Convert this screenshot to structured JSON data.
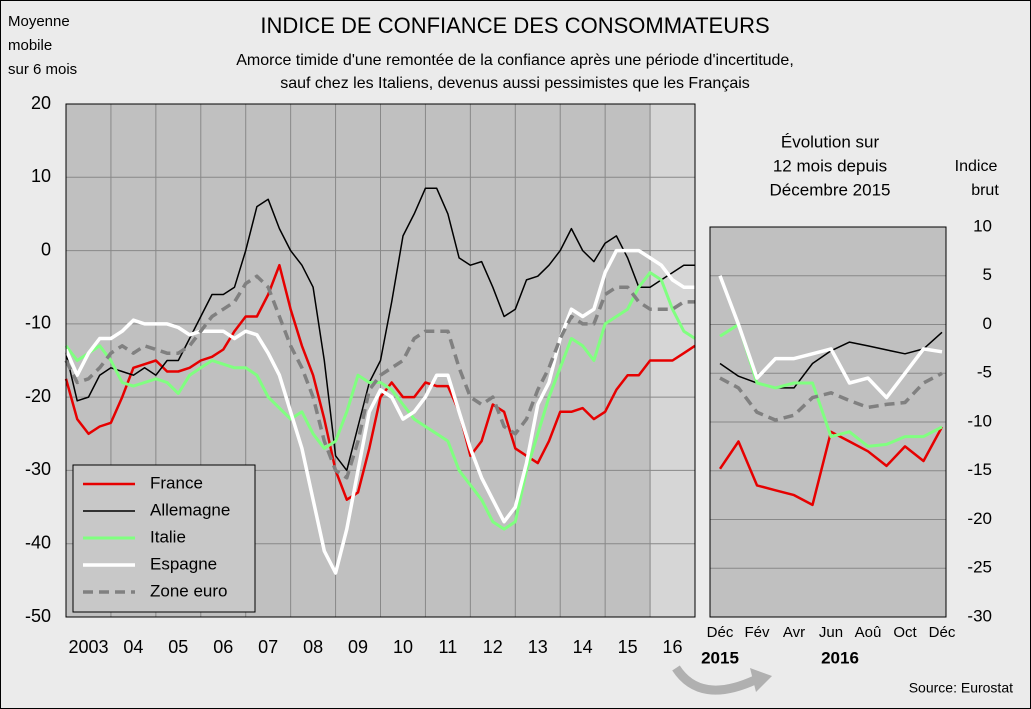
{
  "chart_data": [
    {
      "type": "line",
      "title": "INDICE DE CONFIANCE DES CONSOMMATEURS",
      "subtitle_lines": [
        "Amorce timide d'une remontée de la confiance après une période d'incertitude,",
        "sauf chez les Italiens, devenus aussi pessimistes que les Français"
      ],
      "y_label_lines": [
        "Moyenne",
        "mobile",
        "sur 6 mois"
      ],
      "x": [
        2003,
        2003.25,
        2003.5,
        2003.75,
        2004,
        2004.25,
        2004.5,
        2004.75,
        2005,
        2005.25,
        2005.5,
        2005.75,
        2006,
        2006.25,
        2006.5,
        2006.75,
        2007,
        2007.25,
        2007.5,
        2007.75,
        2008,
        2008.25,
        2008.5,
        2008.75,
        2009,
        2009.25,
        2009.5,
        2009.75,
        2010,
        2010.25,
        2010.5,
        2010.75,
        2011,
        2011.25,
        2011.5,
        2011.75,
        2012,
        2012.25,
        2012.5,
        2012.75,
        2013,
        2013.25,
        2013.5,
        2013.75,
        2014,
        2014.25,
        2014.5,
        2014.75,
        2015,
        2015.25,
        2015.5,
        2015.75,
        2016,
        2016.25,
        2016.5,
        2016.75,
        2017
      ],
      "xlim": [
        2003,
        2017
      ],
      "xticks": [
        {
          "value": 2003.5,
          "label": "2003"
        },
        {
          "value": 2004.5,
          "label": "04"
        },
        {
          "value": 2005.5,
          "label": "05"
        },
        {
          "value": 2006.5,
          "label": "06"
        },
        {
          "value": 2007.5,
          "label": "07"
        },
        {
          "value": 2008.5,
          "label": "08"
        },
        {
          "value": 2009.5,
          "label": "09"
        },
        {
          "value": 2010.5,
          "label": "10"
        },
        {
          "value": 2011.5,
          "label": "11"
        },
        {
          "value": 2012.5,
          "label": "12"
        },
        {
          "value": 2013.5,
          "label": "13"
        },
        {
          "value": 2014.5,
          "label": "14"
        },
        {
          "value": 2015.5,
          "label": "15"
        },
        {
          "value": 2016.5,
          "label": "16"
        }
      ],
      "xgrid": [
        2004,
        2005,
        2006,
        2007,
        2008,
        2009,
        2010,
        2011,
        2012,
        2013,
        2014,
        2015,
        2016
      ],
      "highlight_range": [
        2016,
        2017
      ],
      "ylim": [
        -50,
        20
      ],
      "yticks": [
        -50,
        -40,
        -30,
        -20,
        -10,
        0,
        10,
        20
      ],
      "grid": true,
      "legend": "bottom-left",
      "series": [
        {
          "name": "France",
          "color": "#e60000",
          "values": [
            -17.5,
            -23,
            -25,
            -24,
            -23.5,
            -20,
            -16,
            -15.5,
            -15,
            -16.5,
            -16.5,
            -16,
            -15,
            -14.5,
            -13.5,
            -11,
            -9,
            -9,
            -6,
            -2,
            -8,
            -13,
            -17,
            -23,
            -30,
            -34,
            -33,
            -27,
            -20,
            -18,
            -20,
            -20,
            -18,
            -18.5,
            -18.5,
            -22,
            -28,
            -26,
            -21,
            -22,
            -27,
            -28,
            -29,
            -26,
            -22,
            -22,
            -21.5,
            -23,
            -22,
            -19,
            -17,
            -17,
            -15,
            -15,
            -15,
            -14,
            -13
          ]
        },
        {
          "name": "Allemagne",
          "color": "#000000",
          "values": [
            -14,
            -20.5,
            -20,
            -17,
            -16,
            -16.5,
            -17,
            -16,
            -17,
            -15,
            -15,
            -12,
            -9,
            -6,
            -6,
            -5,
            0,
            6,
            7,
            3,
            0,
            -2,
            -5,
            -15,
            -28,
            -30,
            -24,
            -18,
            -15,
            -7,
            2,
            5,
            8.5,
            8.5,
            5,
            -1,
            -2,
            -1.5,
            -5,
            -9,
            -8,
            -4,
            -3.5,
            -2,
            0,
            3,
            0,
            -1.5,
            1,
            2,
            -1,
            -5,
            -5,
            -4,
            -3,
            -2,
            -2
          ]
        },
        {
          "name": "Italie",
          "color": "#80ff80",
          "values": [
            -13,
            -15,
            -14,
            -13,
            -15,
            -18,
            -18.5,
            -18,
            -17.5,
            -18,
            -19.5,
            -17,
            -16,
            -15,
            -15.5,
            -16,
            -16,
            -17,
            -20,
            -21.5,
            -23,
            -22,
            -25,
            -27,
            -26,
            -22,
            -17,
            -18,
            -18,
            -19,
            -21,
            -23,
            -24,
            -25,
            -26,
            -30,
            -32,
            -34,
            -37,
            -38,
            -37,
            -30,
            -25,
            -20,
            -16,
            -12,
            -13,
            -15,
            -10,
            -9,
            -8,
            -5,
            -3,
            -4,
            -8,
            -11,
            -12
          ]
        },
        {
          "name": "Espagne",
          "color": "#ffffff",
          "values": [
            -13.5,
            -17,
            -14,
            -12,
            -12,
            -11,
            -9.5,
            -10,
            -10,
            -10,
            -10.5,
            -11.5,
            -11,
            -11,
            -11,
            -12,
            -11,
            -11.5,
            -14,
            -17,
            -22,
            -27,
            -34,
            -41,
            -44,
            -38,
            -30,
            -22,
            -19,
            -20,
            -23,
            -22,
            -20,
            -17,
            -17,
            -22,
            -27,
            -31,
            -34,
            -37,
            -35,
            -29,
            -21,
            -18,
            -12,
            -8,
            -9,
            -8,
            -3,
            0,
            0,
            0,
            -1,
            -2,
            -4,
            -5,
            -5
          ]
        },
        {
          "name": "Zone euro",
          "color": "#808080",
          "dashed": true,
          "values": [
            -15,
            -18,
            -17.5,
            -16,
            -14,
            -13,
            -14,
            -13,
            -13.5,
            -14,
            -14,
            -13,
            -11,
            -9,
            -8,
            -7,
            -4.5,
            -3.5,
            -5,
            -9,
            -13,
            -16,
            -20,
            -26,
            -30,
            -31,
            -26,
            -19,
            -17,
            -16,
            -15,
            -12,
            -11,
            -11,
            -11,
            -16,
            -20,
            -21,
            -20,
            -24,
            -25,
            -23,
            -19,
            -16,
            -12,
            -9,
            -10,
            -10,
            -6,
            -5,
            -5,
            -7,
            -8,
            -8,
            -8,
            -7,
            -7
          ]
        }
      ]
    },
    {
      "type": "line",
      "title_lines": [
        "Évolution sur",
        "12 mois depuis",
        "Décembre 2015"
      ],
      "y_label_lines": [
        "Indice",
        "brut"
      ],
      "categories": [
        "Déc",
        null,
        "Fév",
        null,
        "Avr",
        null,
        "Jun",
        null,
        "Aoû",
        null,
        "Oct",
        null,
        "Déc"
      ],
      "year_labels": [
        "2015",
        "2016"
      ],
      "ylim": [
        -30,
        10
      ],
      "yticks": [
        -30,
        -25,
        -20,
        -15,
        -10,
        -5,
        0,
        5,
        10
      ],
      "grid": true,
      "series": [
        {
          "name": "France",
          "color": "#e60000",
          "values": [
            -14.8,
            -12,
            -16.5,
            -17,
            -17.5,
            -18.5,
            -11,
            -12,
            -13,
            -14.5,
            -12.5,
            -14,
            -10.5
          ]
        },
        {
          "name": "Allemagne",
          "color": "#000000",
          "values": [
            -4,
            -5.3,
            -6,
            -6.5,
            -6.5,
            -4,
            -2.7,
            -1.8,
            -2.2,
            -2.6,
            -3,
            -2.5,
            -0.8
          ]
        },
        {
          "name": "Italie",
          "color": "#80ff80",
          "values": [
            -1.2,
            0,
            -6,
            -6.5,
            -6,
            -6,
            -11.5,
            -11,
            -12.5,
            -12.3,
            -11.5,
            -11.5,
            -10.5
          ]
        },
        {
          "name": "Espagne",
          "color": "#ffffff",
          "values": [
            5,
            0,
            -5.5,
            -3.5,
            -3.5,
            -3,
            -2.5,
            -6,
            -5.5,
            -7.5,
            -5,
            -2.5,
            -2.8
          ]
        },
        {
          "name": "Zone euro",
          "color": "#808080",
          "dashed": true,
          "values": [
            -5.5,
            -6.5,
            -9,
            -9.8,
            -9.3,
            -7.5,
            -7,
            -7.8,
            -8.5,
            -8.2,
            -8,
            -6,
            -5
          ]
        }
      ]
    }
  ],
  "source": "Source: Eurostat"
}
